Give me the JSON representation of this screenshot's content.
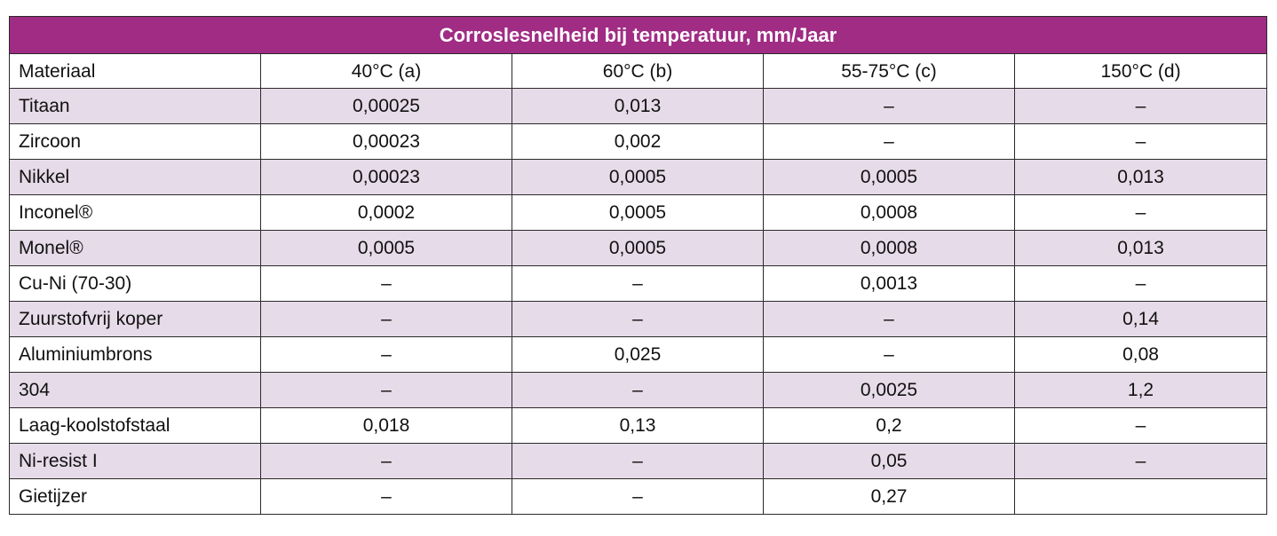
{
  "table": {
    "title": "Corroslesnelheid bij temperatuur, mm/Jaar",
    "headers": [
      "Materiaal",
      "40°C (a)",
      "60°C (b)",
      "55-75°C (c)",
      "150°C (d)"
    ],
    "rows": [
      {
        "cells": [
          "Titaan",
          "0,00025",
          "0,013",
          "–",
          "–"
        ],
        "shaded": true
      },
      {
        "cells": [
          "Zircoon",
          "0,00023",
          "0,002",
          "–",
          "–"
        ],
        "shaded": false
      },
      {
        "cells": [
          "Nikkel",
          "0,00023",
          "0,0005",
          "0,0005",
          "0,013"
        ],
        "shaded": true
      },
      {
        "cells": [
          "Inconel®",
          "0,0002",
          "0,0005",
          "0,0008",
          "–"
        ],
        "shaded": false
      },
      {
        "cells": [
          "Monel®",
          "0,0005",
          "0,0005",
          "0,0008",
          "0,013"
        ],
        "shaded": true
      },
      {
        "cells": [
          "Cu-Ni (70-30)",
          "–",
          "–",
          "0,0013",
          "–"
        ],
        "shaded": false
      },
      {
        "cells": [
          "Zuurstofvrij koper",
          "–",
          "–",
          "–",
          "0,14"
        ],
        "shaded": true
      },
      {
        "cells": [
          "Aluminiumbrons",
          "–",
          "0,025",
          "–",
          "0,08"
        ],
        "shaded": false
      },
      {
        "cells": [
          "304",
          "–",
          "–",
          "0,0025",
          "1,2"
        ],
        "shaded": true
      },
      {
        "cells": [
          "Laag-koolstofstaal",
          "0,018",
          "0,13",
          "0,2",
          "–"
        ],
        "shaded": false
      },
      {
        "cells": [
          "Ni-resist I",
          "–",
          "–",
          "0,05",
          "–"
        ],
        "shaded": true
      },
      {
        "cells": [
          "Gietijzer",
          "–",
          "–",
          "0,27",
          ""
        ],
        "shaded": false
      }
    ]
  },
  "colors": {
    "title_bg": "#a02c84",
    "row_shade": "#e6dbe8",
    "border": "#2a2a2a"
  }
}
